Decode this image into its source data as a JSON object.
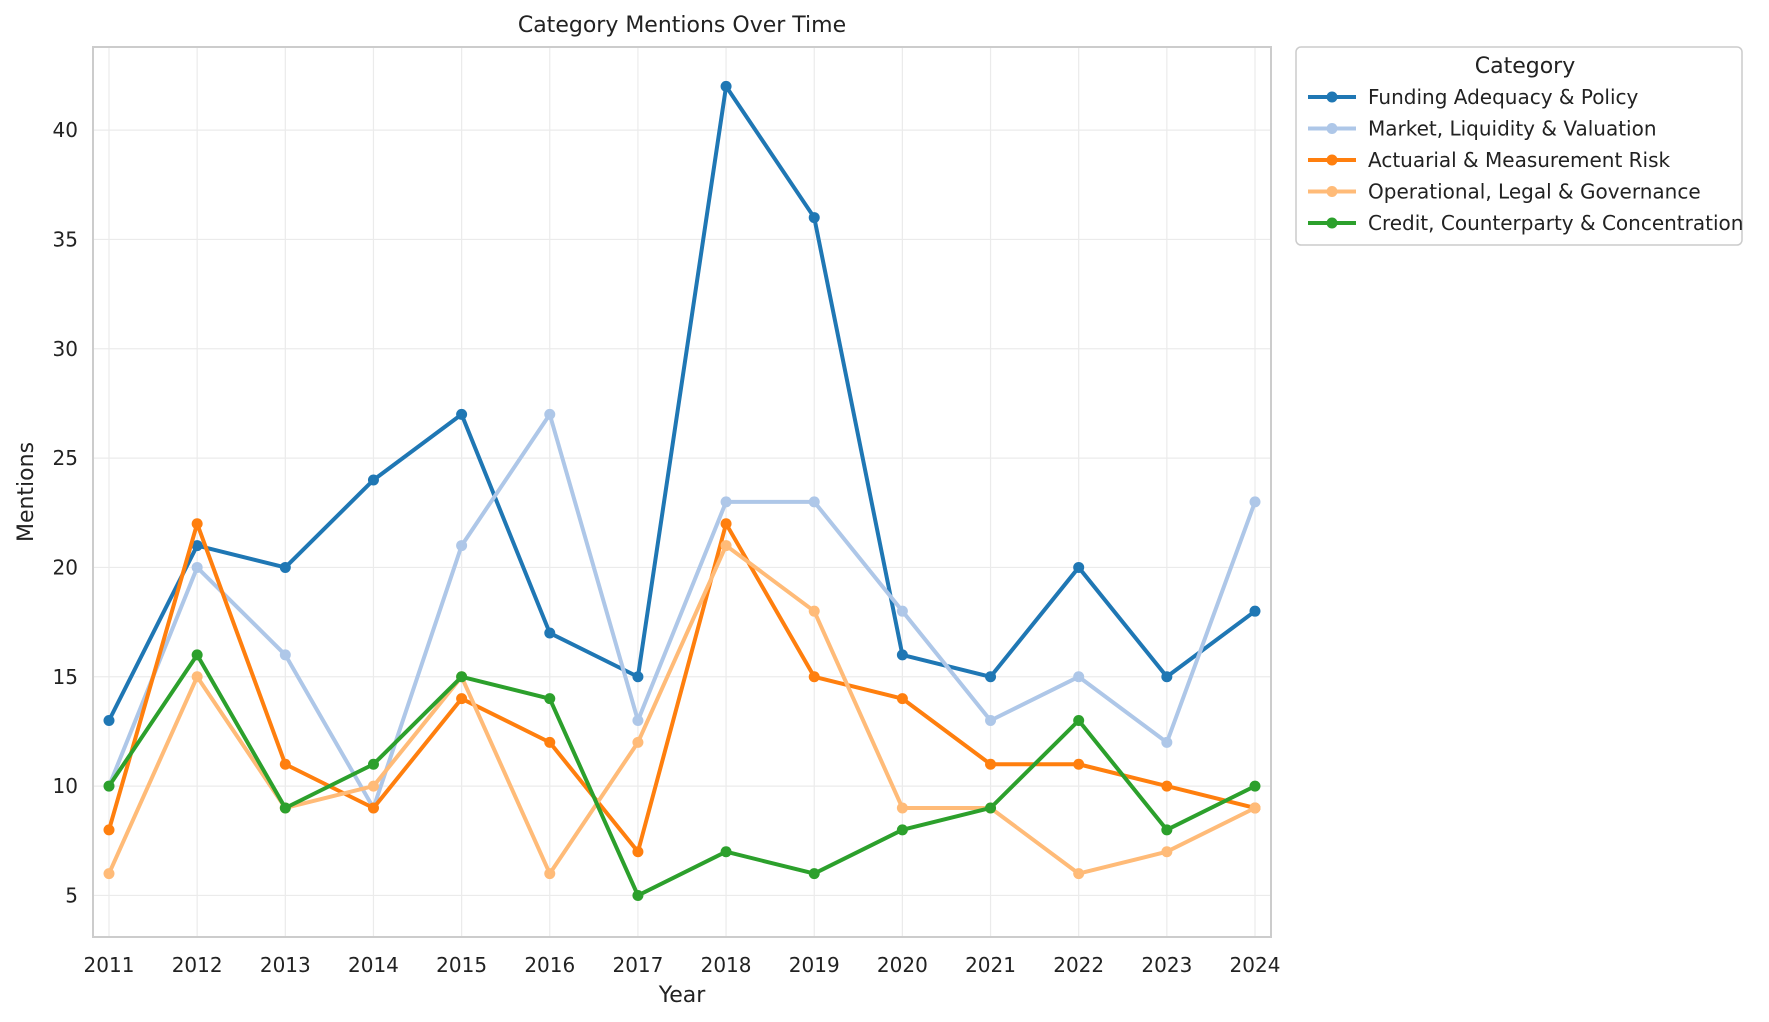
{
  "chart_data": {
    "type": "line",
    "title": "Category Mentions Over Time",
    "xlabel": "Year",
    "ylabel": "Mentions",
    "x": [
      2011,
      2012,
      2013,
      2014,
      2015,
      2016,
      2017,
      2018,
      2019,
      2020,
      2021,
      2022,
      2023,
      2024
    ],
    "x_tick_labels": [
      "2011",
      "2012",
      "2013",
      "2014",
      "2015",
      "2016",
      "2017",
      "2018",
      "2019",
      "2020",
      "2021",
      "2022",
      "2023",
      "2024"
    ],
    "yticks": [
      5,
      10,
      15,
      20,
      25,
      30,
      35,
      40
    ],
    "y_tick_labels": [
      "5",
      "10",
      "15",
      "20",
      "25",
      "30",
      "35",
      "40"
    ],
    "ylim": [
      3.1,
      43.8
    ],
    "grid": true,
    "legend": {
      "title": "Category",
      "placement": "outside-top-right"
    },
    "series": [
      {
        "name": "Funding Adequacy & Policy",
        "color": "#1f77b4",
        "values": [
          13,
          21,
          20,
          24,
          27,
          17,
          15,
          42,
          36,
          16,
          15,
          20,
          15,
          18
        ]
      },
      {
        "name": "Market, Liquidity & Valuation",
        "color": "#aec7e8",
        "values": [
          10,
          20,
          16,
          9,
          21,
          27,
          13,
          23,
          23,
          18,
          13,
          15,
          12,
          23
        ]
      },
      {
        "name": "Actuarial & Measurement Risk",
        "color": "#ff7f0e",
        "values": [
          8,
          22,
          11,
          9,
          14,
          12,
          7,
          22,
          15,
          14,
          11,
          11,
          10,
          9
        ]
      },
      {
        "name": "Operational, Legal & Governance",
        "color": "#ffbb78",
        "values": [
          6,
          15,
          9,
          10,
          15,
          6,
          12,
          21,
          18,
          9,
          9,
          6,
          7,
          9
        ]
      },
      {
        "name": "Credit, Counterparty & Concentration",
        "color": "#2ca02c",
        "values": [
          10,
          16,
          9,
          11,
          15,
          14,
          5,
          7,
          6,
          8,
          9,
          13,
          8,
          10
        ]
      }
    ]
  }
}
